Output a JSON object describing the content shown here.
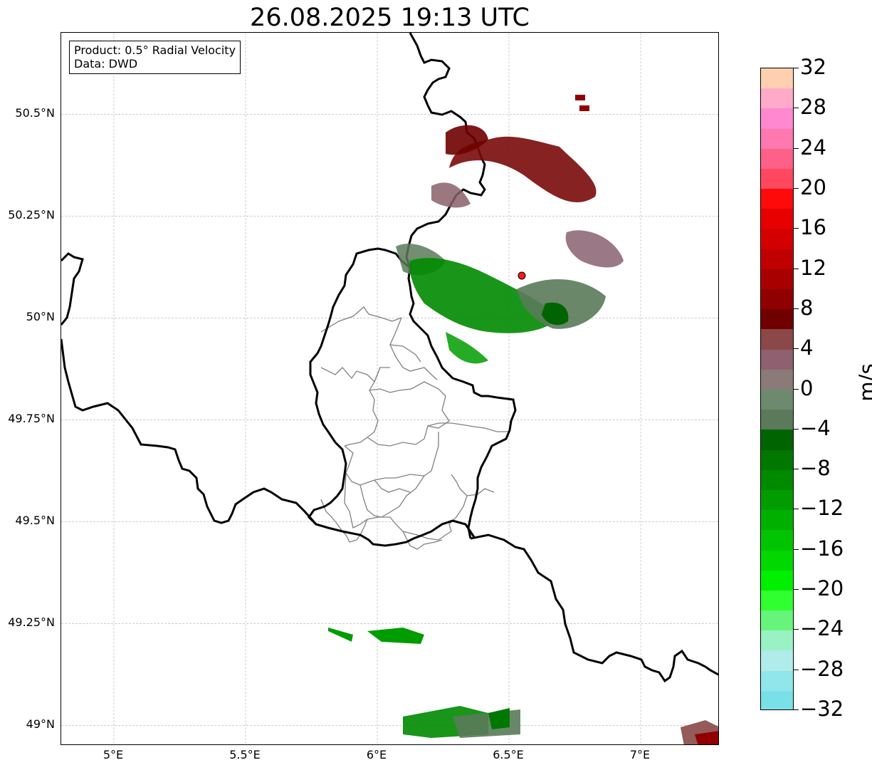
{
  "title": "26.08.2025 19:13 UTC",
  "info_box": {
    "product": "Product: 0.5° Radial Velocity",
    "data_source": "Data: DWD"
  },
  "map": {
    "extent": {
      "lon_min": 4.8,
      "lon_max": 7.3,
      "lat_min": 48.95,
      "lat_max": 50.7
    },
    "lat_ticks": [
      {
        "value": 50.5,
        "label": "50.5°N"
      },
      {
        "value": 50.25,
        "label": "50.25°N"
      },
      {
        "value": 50.0,
        "label": "50°N"
      },
      {
        "value": 49.75,
        "label": "49.75°N"
      },
      {
        "value": 49.5,
        "label": "49.5°N"
      },
      {
        "value": 49.25,
        "label": "49.25°N"
      },
      {
        "value": 49.0,
        "label": "49°N"
      }
    ],
    "lon_ticks": [
      {
        "value": 5.0,
        "label": "5°E"
      },
      {
        "value": 5.5,
        "label": "5.5°E"
      },
      {
        "value": 6.0,
        "label": "6°E"
      },
      {
        "value": 6.5,
        "label": "6.5°E"
      },
      {
        "value": 7.0,
        "label": "7°E"
      }
    ],
    "grid": true,
    "radar_site": {
      "lon": 6.55,
      "lat": 50.11,
      "color": "#ff1a1a"
    }
  },
  "colorbar": {
    "unit": "m/s",
    "min": -32,
    "max": 32,
    "tick_labels": [
      "32",
      "28",
      "24",
      "20",
      "16",
      "12",
      "8",
      "4",
      "0",
      "−4",
      "−8",
      "−12",
      "−16",
      "−20",
      "−24",
      "−28",
      "−32"
    ],
    "colors_top_to_bottom": [
      "#ffd0b0",
      "#ffaac8",
      "#ff88d0",
      "#ff78b0",
      "#ff6088",
      "#ff4860",
      "#ff0a0a",
      "#e60000",
      "#d40000",
      "#c00000",
      "#a80000",
      "#900000",
      "#700000",
      "#8a4848",
      "#8e6070",
      "#8a7a78",
      "#6e8a6e",
      "#5a7a5a",
      "#006400",
      "#007800",
      "#008a00",
      "#009c00",
      "#00b000",
      "#00c400",
      "#00d800",
      "#00f000",
      "#30ff30",
      "#66f57a",
      "#99f2c4",
      "#b0ecea",
      "#90e6ea",
      "#78e0e6"
    ]
  }
}
